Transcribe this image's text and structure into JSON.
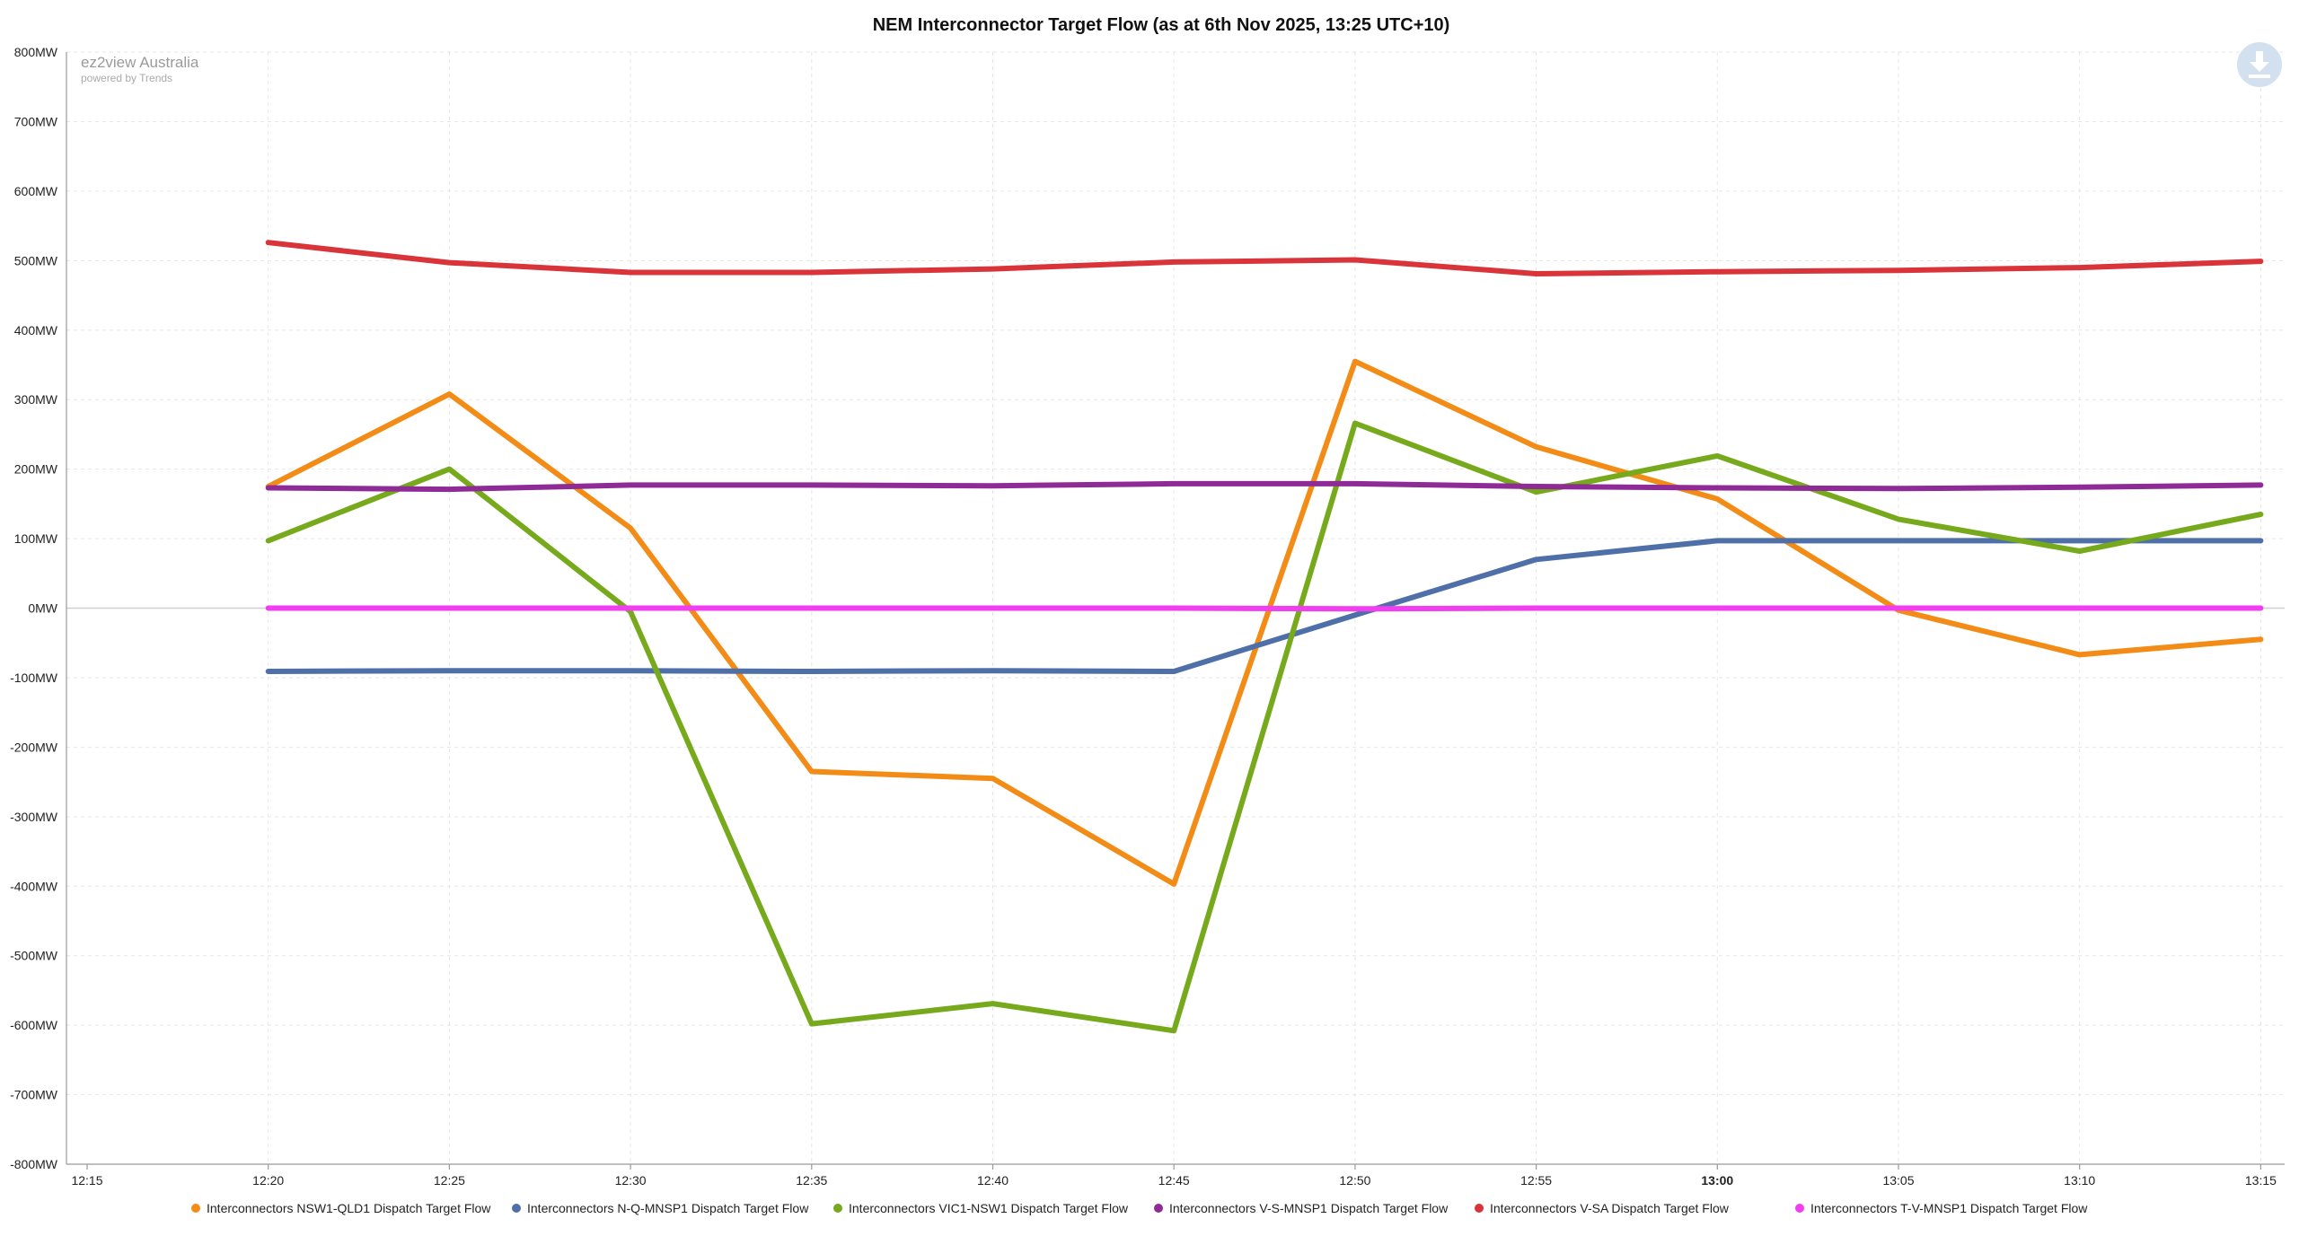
{
  "chart_data": {
    "type": "line",
    "title": "NEM Interconnector Target Flow (as at 6th Nov 2025, 13:25 UTC+10)",
    "watermark": {
      "title": "ez2view Australia",
      "subtitle": "powered by Trends"
    },
    "y_ticks": [
      "800MW",
      "700MW",
      "600MW",
      "500MW",
      "400MW",
      "300MW",
      "200MW",
      "100MW",
      "0MW",
      "-100MW",
      "-200MW",
      "-300MW",
      "-400MW",
      "-500MW",
      "-600MW",
      "-700MW",
      "-800MW"
    ],
    "ylim": [
      -800,
      800
    ],
    "y_step": 100,
    "x_ticks": [
      "12:15",
      "12:20",
      "12:25",
      "12:30",
      "12:35",
      "12:40",
      "12:45",
      "12:50",
      "12:55",
      "13:00",
      "13:05",
      "13:10",
      "13:15"
    ],
    "x_bold_tick": "13:00",
    "x": [
      "12:20",
      "12:25",
      "12:30",
      "12:35",
      "12:40",
      "12:45",
      "12:50",
      "12:55",
      "13:00",
      "13:05",
      "13:10",
      "13:15"
    ],
    "grid": true,
    "legend_position": "bottom",
    "series": [
      {
        "name": "Interconnectors NSW1-QLD1 Dispatch Target Flow",
        "color": "#f28c16",
        "values": [
          175,
          308,
          115,
          -235,
          -245,
          -397,
          355,
          232,
          157,
          -3,
          -67,
          -45
        ]
      },
      {
        "name": "Interconnectors N-Q-MNSP1 Dispatch Target Flow",
        "color": "#4e6fa8",
        "values": [
          -91,
          -90,
          -90,
          -91,
          -90,
          -91,
          -10,
          70,
          97,
          97,
          97,
          97
        ]
      },
      {
        "name": "Interconnectors VIC1-NSW1 Dispatch Target Flow",
        "color": "#76a91b",
        "values": [
          97,
          200,
          -5,
          -598,
          -569,
          -608,
          266,
          167,
          219,
          128,
          82,
          135
        ]
      },
      {
        "name": "Interconnectors V-S-MNSP1 Dispatch Target Flow",
        "color": "#8e2b96",
        "values": [
          173,
          171,
          177,
          177,
          176,
          179,
          179,
          175,
          173,
          172,
          174,
          177
        ]
      },
      {
        "name": "Interconnectors V-SA Dispatch Target Flow",
        "color": "#d9343a",
        "values": [
          526,
          497,
          483,
          483,
          488,
          498,
          501,
          481,
          484,
          486,
          490,
          499
        ]
      },
      {
        "name": "Interconnectors T-V-MNSP1 Dispatch Target Flow",
        "color": "#f03ef0",
        "values": [
          0,
          0,
          0,
          0,
          0,
          0,
          -1,
          0,
          0,
          0,
          0,
          0
        ]
      }
    ]
  },
  "toolbar": {
    "download_icon": "download-icon"
  }
}
